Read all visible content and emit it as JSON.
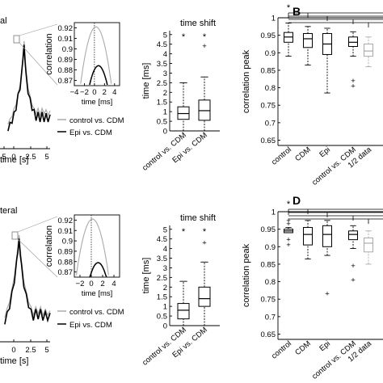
{
  "figure": {
    "row_labels": [
      "al",
      "teral"
    ],
    "trace_time_label": "time [s]"
  },
  "chart_data": [
    {
      "id": "A-trace",
      "type": "line",
      "xlabel": "time [s]",
      "x_ticks": [
        "5",
        "0",
        "2.5",
        "5"
      ],
      "x_tick_prefix": "",
      "legend": [
        "control vs. CDM",
        "Epi vs. CDM"
      ],
      "series": [
        {
          "name": "control vs. CDM",
          "color": "#aaaaaa",
          "x": [
            -1.6,
            -1.4,
            -1.2,
            -1.0,
            -0.8,
            -0.6,
            -0.4,
            -0.2,
            -0.1,
            0,
            0.1,
            0.2,
            0.4,
            0.6,
            0.8,
            1.0,
            1.2,
            1.4,
            1.6,
            1.8,
            2.0,
            2.2,
            2.4,
            2.6
          ],
          "y": [
            0.3,
            0.32,
            0.36,
            0.4,
            0.45,
            0.52,
            0.6,
            0.72,
            0.85,
            0.92,
            0.84,
            0.7,
            0.58,
            0.5,
            0.45,
            0.4,
            0.38,
            0.4,
            0.37,
            0.4,
            0.38,
            0.39,
            0.37,
            0.38
          ]
        },
        {
          "name": "Epi vs. CDM",
          "color": "#000000",
          "x": [
            -1.6,
            -1.4,
            -1.2,
            -1.0,
            -0.8,
            -0.6,
            -0.4,
            -0.2,
            -0.1,
            0,
            0.1,
            0.2,
            0.4,
            0.6,
            0.8,
            1.0,
            1.2,
            1.4,
            1.6,
            1.8,
            2.0,
            2.2,
            2.4,
            2.6
          ],
          "y": [
            0.26,
            0.28,
            0.32,
            0.36,
            0.42,
            0.5,
            0.58,
            0.7,
            0.82,
            0.88,
            0.8,
            0.66,
            0.55,
            0.47,
            0.42,
            0.38,
            0.34,
            0.36,
            0.33,
            0.36,
            0.33,
            0.35,
            0.33,
            0.34
          ]
        }
      ]
    },
    {
      "id": "A-inset",
      "type": "line",
      "ylabel": "correlation",
      "xlabel": "time [ms]",
      "y_ticks": [
        "0.92",
        "0.91",
        "0.9",
        "0.89",
        "0.88",
        "0.87"
      ],
      "x_ticks": [
        "−4",
        "−2",
        "0",
        "2",
        "4"
      ],
      "ylim": [
        0.865,
        0.925
      ],
      "xlim": [
        -4,
        5
      ],
      "series": [
        {
          "name": "control vs. CDM",
          "color": "#aaaaaa",
          "peak_x": 0.3,
          "peak_y": 0.921,
          "width": 3.2
        },
        {
          "name": "Epi vs. CDM",
          "color": "#000000",
          "peak_x": 0.8,
          "peak_y": 0.884,
          "width": 3.2
        }
      ]
    },
    {
      "id": "A-timeshift",
      "type": "box",
      "title": "time shift",
      "ylabel": "time [ms]",
      "y_ticks": [
        "0",
        "0.5",
        "1",
        "1.5",
        "2",
        "2.5",
        "3",
        "3.5",
        "4",
        "4.5",
        "5"
      ],
      "ylim": [
        0,
        5.2
      ],
      "categories": [
        "control vs. CDM",
        "Epi vs. CDM"
      ],
      "boxes": [
        {
          "whisker_low": 0,
          "q1": 0.6,
          "median": 0.9,
          "q3": 1.25,
          "whisker_high": 2.5,
          "outliers": []
        },
        {
          "whisker_low": 0,
          "q1": 0.55,
          "median": 1.05,
          "q3": 1.6,
          "whisker_high": 2.8,
          "outliers": [
            4.4
          ]
        }
      ],
      "stars": [
        5.0,
        5.0
      ]
    },
    {
      "id": "B",
      "type": "box",
      "panel_label": "B",
      "ylabel": "correlation peak",
      "y_ticks": [
        "0.65",
        "0.7",
        "0.75",
        "0.8",
        "0.85",
        "0.9",
        "0.95",
        "1"
      ],
      "ylim": [
        0.635,
        1.0
      ],
      "categories": [
        "control",
        "CDM",
        "Epi",
        "control vs. CDM",
        "1/2 data"
      ],
      "boxes": [
        {
          "whisker_low": 0.89,
          "q1": 0.93,
          "median": 0.945,
          "q3": 0.958,
          "whisker_high": 0.985,
          "outliers": [],
          "color": "#000000"
        },
        {
          "whisker_low": 0.865,
          "q1": 0.915,
          "median": 0.94,
          "q3": 0.955,
          "whisker_high": 0.975,
          "outliers": [],
          "color": "#000000"
        },
        {
          "whisker_low": 0.785,
          "q1": 0.895,
          "median": 0.925,
          "q3": 0.955,
          "whisker_high": 0.97,
          "outliers": [],
          "color": "#000000"
        },
        {
          "whisker_low": 0.89,
          "q1": 0.918,
          "median": 0.93,
          "q3": 0.945,
          "whisker_high": 0.96,
          "outliers": [
            0.82,
            0.805
          ],
          "color": "#000000"
        },
        {
          "whisker_low": 0.86,
          "q1": 0.89,
          "median": 0.905,
          "q3": 0.925,
          "whisker_high": 0.945,
          "outliers": [],
          "color": "#aaaaaa"
        }
      ],
      "star": "*"
    },
    {
      "id": "C-trace",
      "type": "line",
      "xlabel": "time [s]",
      "x_ticks": [
        "0",
        "2.5",
        "5"
      ],
      "legend": [
        "control vs. CDM",
        "Epi vs. CDM"
      ],
      "series": [
        {
          "name": "control vs. CDM",
          "color": "#aaaaaa",
          "x": [
            -1.2,
            -1.0,
            -0.8,
            -0.6,
            -0.4,
            -0.2,
            -0.1,
            0,
            0.1,
            0.2,
            0.4,
            0.6,
            0.8,
            1.0,
            1.2,
            1.4,
            1.6,
            1.8,
            2.0,
            2.2,
            2.4,
            2.6
          ],
          "y": [
            0.3,
            0.35,
            0.42,
            0.5,
            0.62,
            0.75,
            0.86,
            0.92,
            0.84,
            0.72,
            0.58,
            0.48,
            0.42,
            0.36,
            0.32,
            0.36,
            0.33,
            0.36,
            0.32,
            0.34,
            0.32,
            0.33
          ]
        },
        {
          "name": "Epi vs. CDM",
          "color": "#000000",
          "x": [
            -1.2,
            -1.0,
            -0.8,
            -0.6,
            -0.4,
            -0.2,
            -0.1,
            0,
            0.1,
            0.2,
            0.4,
            0.6,
            0.8,
            1.0,
            1.2,
            1.4,
            1.6,
            1.8,
            2.0,
            2.2,
            2.4,
            2.6
          ],
          "y": [
            0.26,
            0.31,
            0.38,
            0.47,
            0.58,
            0.72,
            0.82,
            0.88,
            0.8,
            0.68,
            0.55,
            0.45,
            0.39,
            0.33,
            0.29,
            0.33,
            0.3,
            0.33,
            0.29,
            0.31,
            0.29,
            0.3
          ]
        }
      ]
    },
    {
      "id": "C-inset",
      "type": "line",
      "ylabel": "correlation",
      "xlabel": "time [ms]",
      "y_ticks": [
        "0.92",
        "0.91",
        "0.9",
        "0.89",
        "0.88",
        "0.87"
      ],
      "x_ticks": [
        "−2",
        "0",
        "2",
        "4"
      ],
      "ylim": [
        0.865,
        0.925
      ],
      "xlim": [
        -3,
        5
      ],
      "series": [
        {
          "name": "control vs. CDM",
          "color": "#aaaaaa",
          "peak_x": 0.2,
          "peak_y": 0.921,
          "width": 3.0
        },
        {
          "name": "Epi vs. CDM",
          "color": "#000000",
          "peak_x": 1.2,
          "peak_y": 0.879,
          "width": 3.0
        }
      ]
    },
    {
      "id": "C-timeshift",
      "type": "box",
      "title": "time shift",
      "ylabel": "time [ms]",
      "y_ticks": [
        "0",
        "0.5",
        "1",
        "1.5",
        "2",
        "2.5",
        "3",
        "3.5",
        "4",
        "4.5",
        "5"
      ],
      "ylim": [
        0,
        5.2
      ],
      "categories": [
        "control vs. CDM",
        "Epi vs. CDM"
      ],
      "boxes": [
        {
          "whisker_low": 0,
          "q1": 0.35,
          "median": 0.8,
          "q3": 1.15,
          "whisker_high": 2.3,
          "outliers": []
        },
        {
          "whisker_low": 0,
          "q1": 1.0,
          "median": 1.4,
          "q3": 2.0,
          "whisker_high": 3.3,
          "outliers": [
            4.3
          ]
        }
      ],
      "stars": [
        5.0,
        5.0
      ]
    },
    {
      "id": "D",
      "type": "box",
      "panel_label": "D",
      "ylabel": "correlation peak",
      "y_ticks": [
        "0.65",
        "0.7",
        "0.75",
        "0.8",
        "0.85",
        "0.9",
        "0.95",
        "1"
      ],
      "ylim": [
        0.635,
        1.0
      ],
      "categories": [
        "control",
        "CDM",
        "Epi",
        "control vs. CDM",
        "1/2 data"
      ],
      "boxes": [
        {
          "whisker_low": 0.94,
          "q1": 0.94,
          "median": 0.945,
          "q3": 0.95,
          "whisker_high": 0.955,
          "outliers": [
            0.975,
            0.965,
            0.92,
            0.905
          ],
          "color": "#000000"
        },
        {
          "whisker_low": 0.865,
          "q1": 0.905,
          "median": 0.935,
          "q3": 0.955,
          "whisker_high": 0.975,
          "outliers": [],
          "color": "#000000"
        },
        {
          "whisker_low": 0.875,
          "q1": 0.9,
          "median": 0.935,
          "q3": 0.96,
          "whisker_high": 0.975,
          "outliers": [
            0.765
          ],
          "color": "#000000"
        },
        {
          "whisker_low": 0.895,
          "q1": 0.92,
          "median": 0.935,
          "q3": 0.945,
          "whisker_high": 0.96,
          "outliers": [
            0.845,
            0.805
          ],
          "color": "#000000"
        },
        {
          "whisker_low": 0.85,
          "q1": 0.885,
          "median": 0.91,
          "q3": 0.925,
          "whisker_high": 0.945,
          "outliers": [],
          "color": "#aaaaaa"
        }
      ],
      "star": "*"
    }
  ]
}
